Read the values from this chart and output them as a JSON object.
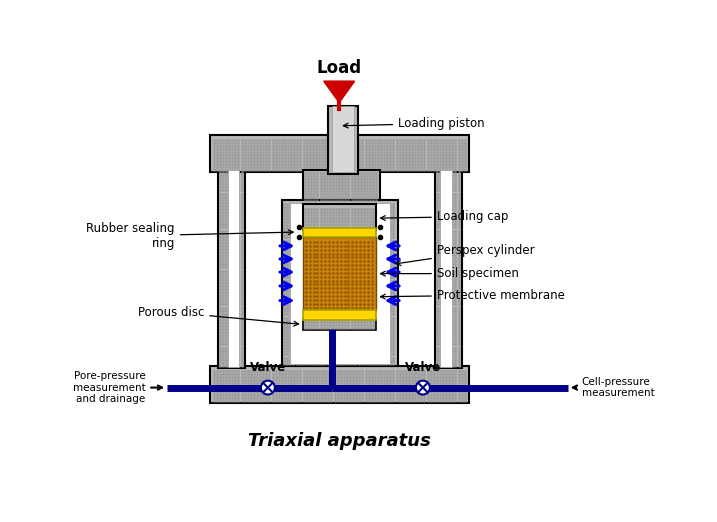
{
  "title": "Triaxial apparatus",
  "title_fontsize": 13,
  "bg_color": "#ffffff",
  "labels": {
    "load": "Load",
    "loading_piston": "Loading piston",
    "loading_cap": "Loading cap",
    "perspex_cylinder": "Perspex cylinder",
    "soil_specimen": "Soil specimen",
    "protective_membrane": "Protective membrane",
    "porous_disc": "Porous disc",
    "rubber_sealing_ring": "Rubber sealing\nring",
    "valve_left": "Valve",
    "valve_right": "Valve",
    "pore_pressure": "Pore-pressure\nmeasurement\nand drainage",
    "cell_pressure": "Cell-pressure\nmeasurement"
  },
  "colors": {
    "gray_hatch": "#b8b8b8",
    "light_gray": "#d8d8d8",
    "white": "#ffffff",
    "soil_brown": "#c8820a",
    "soil_dark": "#7a4800",
    "yellow": "#ffd700",
    "blue_dark": "#00008b",
    "blue_arrow": "#0000ee",
    "red": "#cc0000",
    "black": "#000000",
    "medium_gray": "#999999"
  }
}
